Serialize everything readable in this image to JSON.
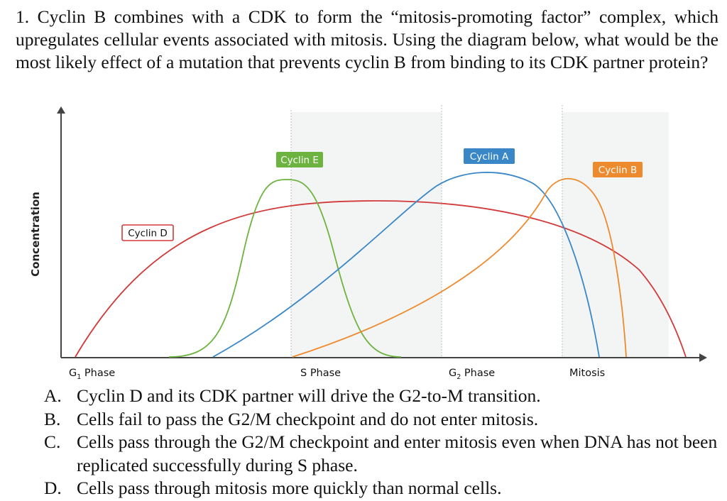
{
  "question": {
    "text": "1. Cyclin B combines with a CDK to form the “mitosis-promoting factor” complex, which upregulates cellular events associated with mitosis. Using the diagram below, what would be the most likely effect of a mutation that prevents cyclin B from binding to its CDK partner protein?"
  },
  "diagram": {
    "y_axis_label": "Concentration",
    "phases": [
      "G1 Phase",
      "S Phase",
      "G2 Phase",
      "Mitosis"
    ],
    "phase_labels": [
      {
        "main": "G",
        "sub": "1",
        "rest": " Phase"
      },
      {
        "main": "S Phase",
        "sub": "",
        "rest": ""
      },
      {
        "main": "G",
        "sub": "2",
        "rest": " Phase"
      },
      {
        "main": "Mitosis",
        "sub": "",
        "rest": ""
      }
    ],
    "curves": [
      {
        "name": "Cyclin D",
        "color": "#d23a3a"
      },
      {
        "name": "Cyclin E",
        "color": "#6db33f"
      },
      {
        "name": "Cyclin A",
        "color": "#3a87c8"
      },
      {
        "name": "Cyclin B",
        "color": "#ee8a2e"
      }
    ]
  },
  "options": [
    {
      "letter": "A.",
      "text": "Cyclin D and its CDK partner will drive the G2-to-M transition."
    },
    {
      "letter": "B.",
      "text": "Cells fail to pass the G2/M checkpoint and do not enter mitosis."
    },
    {
      "letter": "C.",
      "text": "Cells pass through the G2/M checkpoint and enter mitosis even when DNA has not been replicated successfully during S phase."
    },
    {
      "letter": "D.",
      "text": "Cells pass through mitosis more quickly than normal cells."
    }
  ]
}
